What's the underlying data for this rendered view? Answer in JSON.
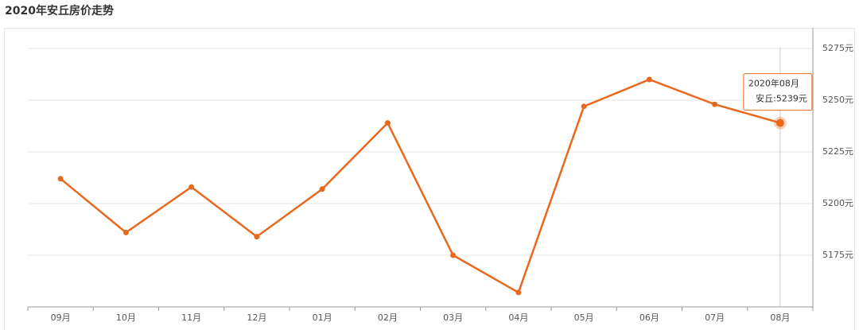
{
  "chart_data": {
    "type": "line",
    "title": "2020年安丘房价走势",
    "categories": [
      "09月",
      "10月",
      "11月",
      "12月",
      "01月",
      "02月",
      "03月",
      "04月",
      "05月",
      "06月",
      "07月",
      "08月"
    ],
    "series": [
      {
        "name": "安丘",
        "color": "#e8691e",
        "values": [
          5212,
          5186,
          5208,
          5184,
          5207,
          5239,
          5175,
          5157,
          5247,
          5260,
          5248,
          5239
        ]
      }
    ],
    "ylim": [
      5150,
      5285
    ],
    "yticks": [
      {
        "value": 5175,
        "label": "5175元"
      },
      {
        "value": 5200,
        "label": "5200元"
      },
      {
        "value": 5225,
        "label": "5225元"
      },
      {
        "value": 5250,
        "label": "5250元"
      },
      {
        "value": 5275,
        "label": "5275元"
      }
    ],
    "grid": true,
    "tooltip": {
      "title": "2020年08月",
      "label": "安丘:5239元"
    }
  }
}
